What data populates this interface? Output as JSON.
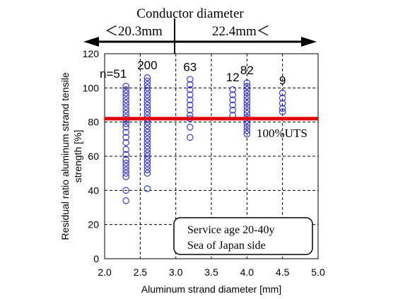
{
  "chart_data": {
    "type": "scatter",
    "title": "",
    "xlabel": "Aluminum strand diameter [mm]",
    "ylabel": "Residual ratio aluminum strand tensile strength [%]",
    "xlim": [
      2.0,
      5.0
    ],
    "ylim": [
      0,
      120
    ],
    "xticks": [
      "2.0",
      "2.5",
      "3.0",
      "3.5",
      "4.0",
      "4.5",
      "5.0"
    ],
    "yticks": [
      "0",
      "20",
      "40",
      "60",
      "80",
      "100",
      "120"
    ],
    "grid": true,
    "marker_color": "#3a3acc",
    "reference_line": {
      "y": 82,
      "label": "100%UTS",
      "color": "#e00000"
    },
    "groups": [
      {
        "x": 2.3,
        "n_label": "n=51",
        "y": [
          101,
          99,
          97,
          95,
          93,
          91,
          89,
          87,
          85,
          83,
          81,
          79,
          77,
          74,
          71,
          68,
          64,
          61,
          58,
          56,
          54,
          52,
          50,
          48,
          40,
          34
        ]
      },
      {
        "x": 2.6,
        "n_label": "200",
        "y": [
          106,
          104,
          102,
          100,
          98,
          96,
          94,
          92,
          90,
          88,
          86,
          84,
          82,
          80,
          78,
          76,
          74,
          72,
          70,
          68,
          66,
          64,
          62,
          60,
          58,
          56,
          54,
          52,
          50,
          41
        ]
      },
      {
        "x": 3.2,
        "n_label": "63",
        "y": [
          105,
          102,
          99,
          96,
          93,
          90,
          87,
          84,
          82,
          77,
          71
        ]
      },
      {
        "x": 3.8,
        "n_label": "12",
        "y": [
          99,
          96,
          93,
          90,
          87,
          84
        ]
      },
      {
        "x": 4.0,
        "n_label": "82",
        "y": [
          103,
          101,
          99,
          97,
          95,
          93,
          91,
          89,
          87,
          85,
          83,
          81,
          79,
          77,
          75,
          73
        ]
      },
      {
        "x": 4.5,
        "n_label": "9",
        "y": [
          97,
          94,
          91,
          88,
          86
        ]
      }
    ]
  },
  "header": {
    "title": "Conductor diameter",
    "left_range": "＜20.3mm",
    "right_range": "22.4mm＜"
  },
  "legend_box": {
    "line1": "Service age 20-40y",
    "line2": "Sea of Japan side"
  }
}
